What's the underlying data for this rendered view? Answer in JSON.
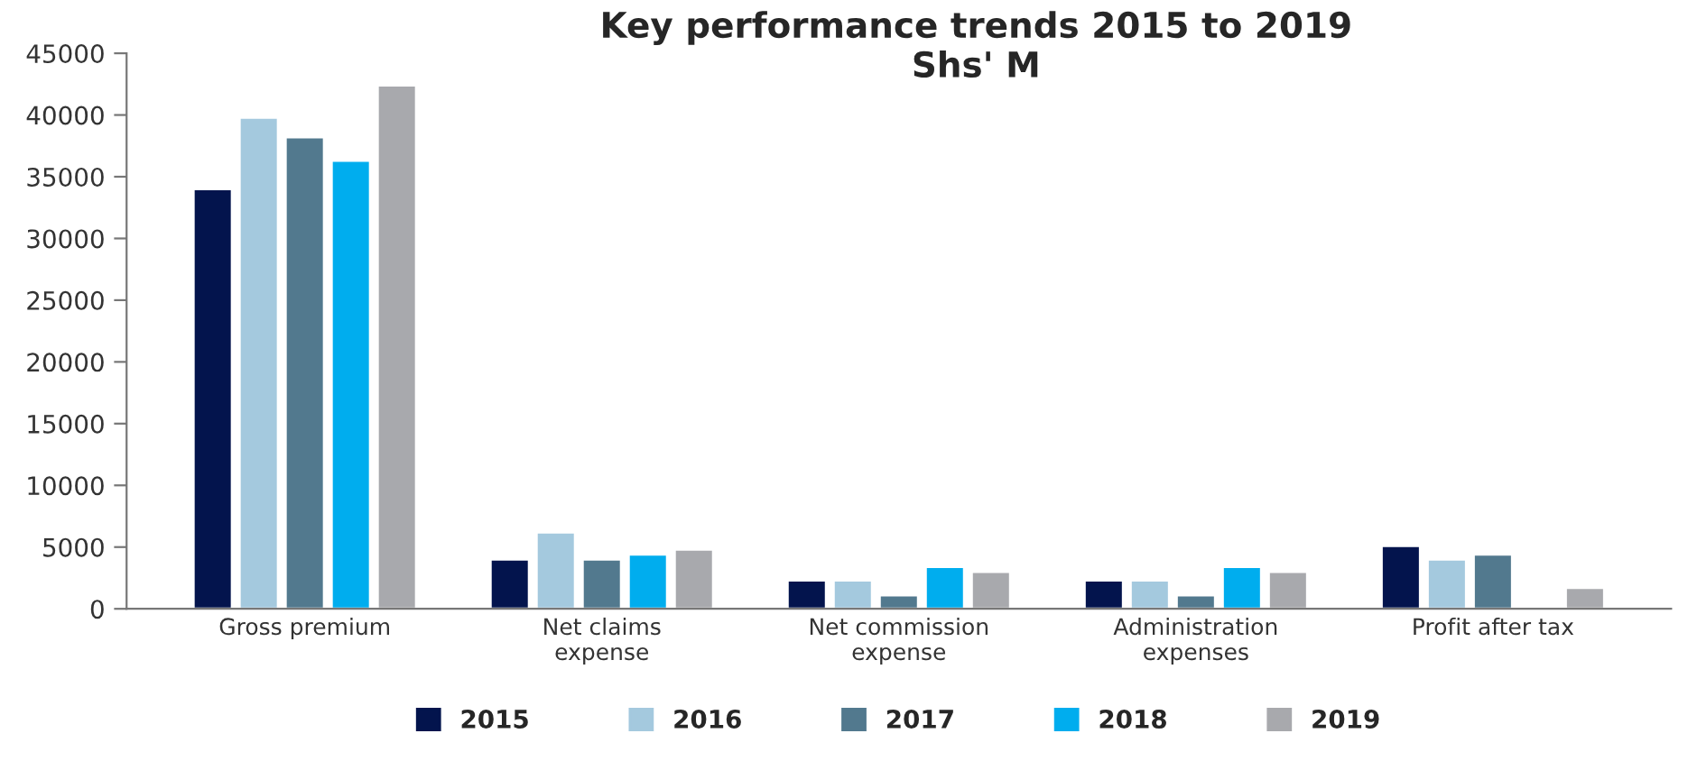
{
  "chart_data": {
    "type": "bar",
    "title": "Key performance trends 2015 to 2019\nShs' M",
    "categories": [
      "Gross premium",
      "Net claims\nexpense",
      "Net commission\nexpense",
      "Administration\nexpenses",
      "Profit after tax"
    ],
    "series": [
      {
        "name": "2015",
        "color": "#03144d",
        "values": [
          34000,
          4000,
          2300,
          2300,
          5100
        ]
      },
      {
        "name": "2016",
        "color": "#a4c9de",
        "values": [
          39800,
          6200,
          2300,
          2300,
          4000
        ]
      },
      {
        "name": "2017",
        "color": "#52798e",
        "values": [
          38200,
          4000,
          1100,
          1100,
          4400
        ]
      },
      {
        "name": "2018",
        "color": "#00adee",
        "values": [
          36300,
          4400,
          3400,
          3400,
          null
        ]
      },
      {
        "name": "2019",
        "color": "#a8a9ad",
        "values": [
          42400,
          4800,
          3000,
          3000,
          1700
        ]
      }
    ],
    "ylim": [
      0,
      45000
    ],
    "yticks": [
      0,
      5000,
      10000,
      15000,
      20000,
      25000,
      30000,
      35000,
      40000,
      45000
    ],
    "grid": false,
    "legend": "bottom"
  }
}
